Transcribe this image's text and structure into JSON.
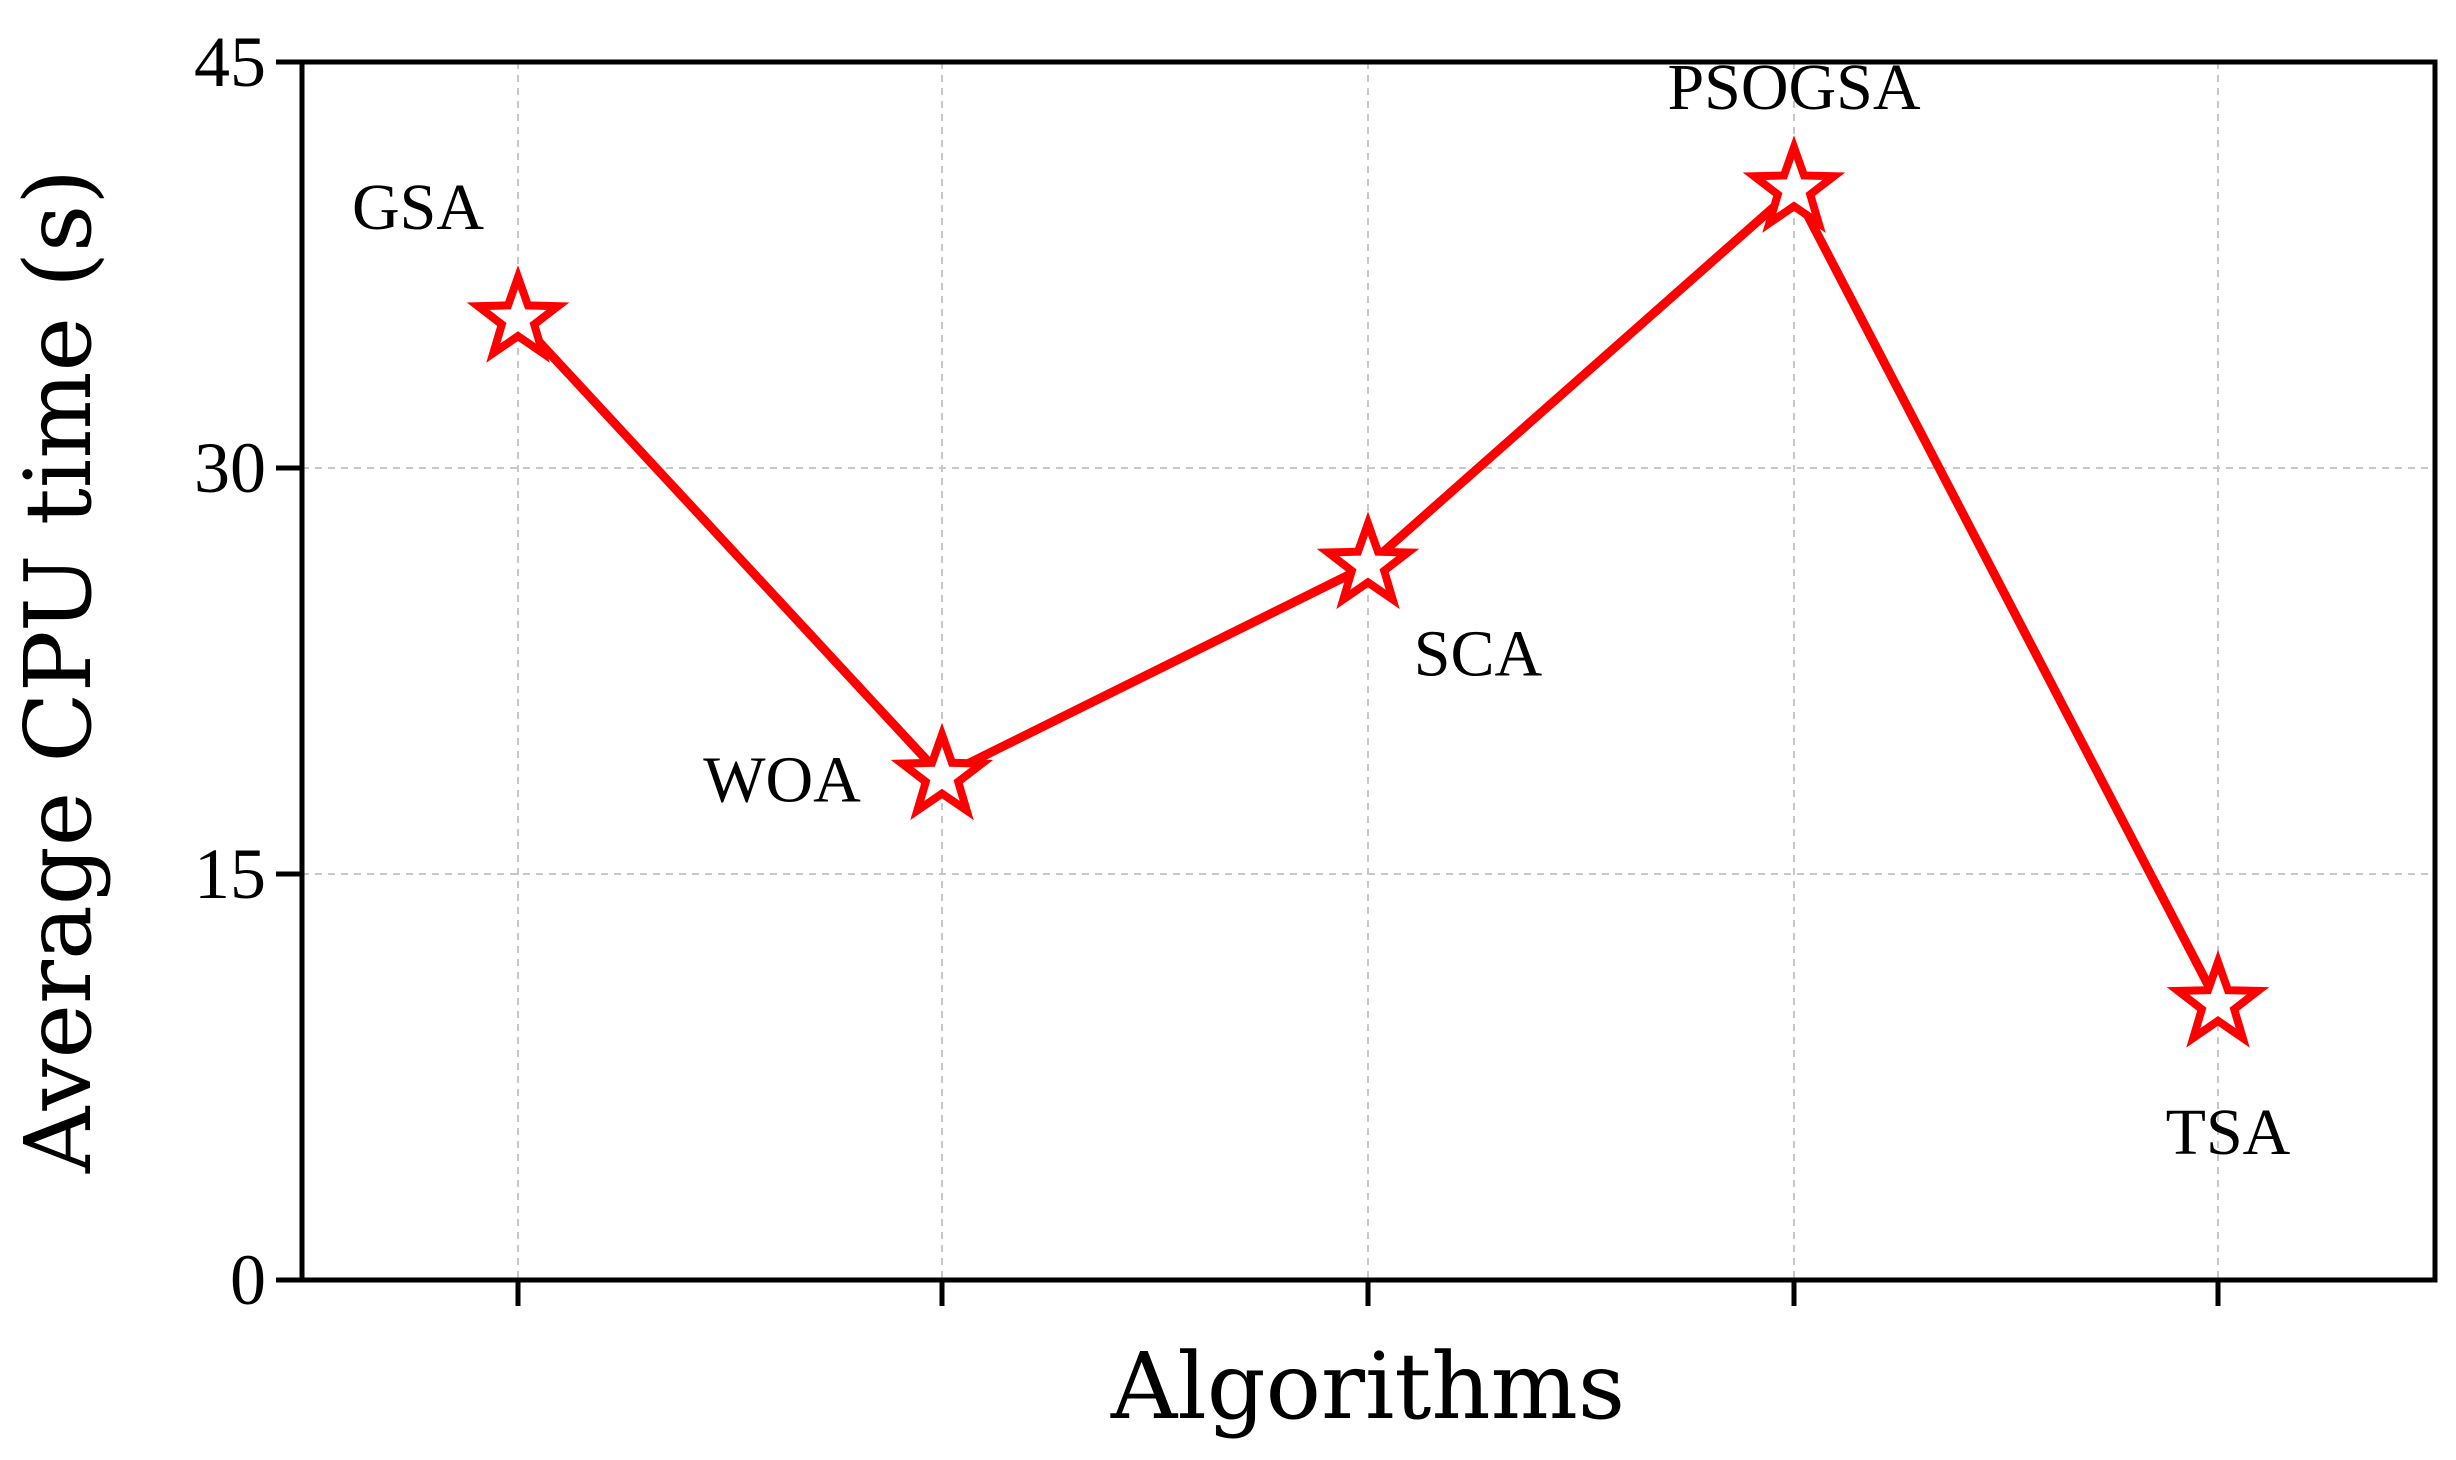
{
  "chart_data": {
    "type": "line",
    "xlabel": "Algorithms",
    "ylabel": "Average CPU time (s)",
    "ylim": [
      0,
      45
    ],
    "yticks": [
      0,
      15,
      30,
      45
    ],
    "grid": true,
    "color": "#ff0000",
    "marker": "star",
    "categories": [
      "GSA",
      "WOA",
      "SCA",
      "PSOGSA",
      "TSA"
    ],
    "series": [
      {
        "values": [
          35.5,
          18.6,
          26.4,
          40.3,
          10.2
        ]
      }
    ],
    "point_labels": [
      "GSA",
      "WOA",
      "SCA",
      "PSOGSA",
      "TSA"
    ]
  }
}
